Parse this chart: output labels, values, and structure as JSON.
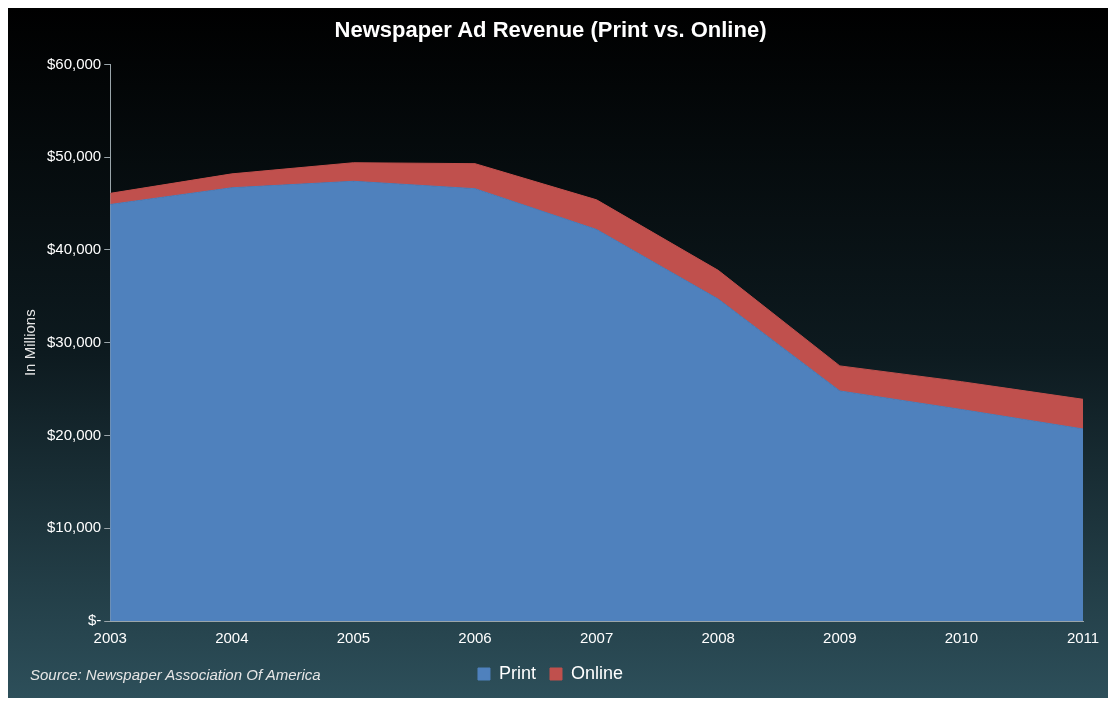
{
  "chart_data": {
    "type": "area",
    "title": "Newspaper Ad Revenue (Print vs. Online)",
    "ylabel": "In Millions",
    "stacked": true,
    "categories": [
      "2003",
      "2004",
      "2005",
      "2006",
      "2007",
      "2008",
      "2009",
      "2010",
      "2011"
    ],
    "series": [
      {
        "name": "Print",
        "color": "#4f81bd",
        "values": [
          44900,
          46700,
          47400,
          46600,
          42200,
          34700,
          24800,
          22800,
          20700
        ]
      },
      {
        "name": "Online",
        "color": "#c0504d",
        "values": [
          1200,
          1500,
          2000,
          2700,
          3200,
          3100,
          2700,
          3000,
          3200
        ]
      }
    ],
    "ylim": [
      0,
      60000
    ],
    "yticks": [
      {
        "value": 0,
        "label": "$-"
      },
      {
        "value": 10000,
        "label": "$10,000"
      },
      {
        "value": 20000,
        "label": "$20,000"
      },
      {
        "value": 30000,
        "label": "$30,000"
      },
      {
        "value": 40000,
        "label": "$40,000"
      },
      {
        "value": 50000,
        "label": "$50,000"
      },
      {
        "value": 60000,
        "label": "$60,000"
      }
    ],
    "grid": false,
    "legend": "bottom",
    "annotations": [
      "Source: Newspaper Association Of America"
    ]
  }
}
